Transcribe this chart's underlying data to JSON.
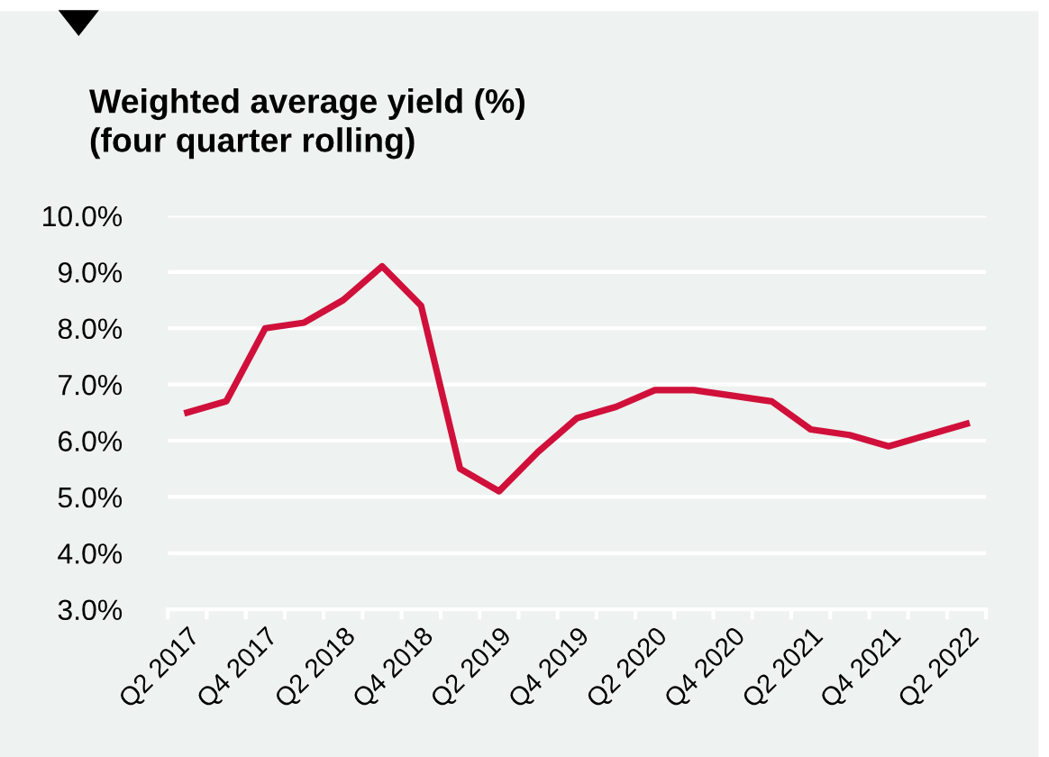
{
  "chart_data": {
    "type": "line",
    "title": "Weighted average yield (%)\n(four quarter rolling)",
    "categories": [
      "Q2 2017",
      null,
      "Q4 2017",
      null,
      "Q2 2018",
      null,
      "Q4 2018",
      null,
      "Q2 2019",
      null,
      "Q4 2019",
      null,
      "Q2 2020",
      null,
      "Q4 2020",
      null,
      "Q2 2021",
      null,
      "Q4 2021",
      null,
      "Q2 2022"
    ],
    "series": [
      {
        "color": "#d0103a",
        "values": [
          6.5,
          6.7,
          8.0,
          8.1,
          8.5,
          9.1,
          8.4,
          5.5,
          5.1,
          5.8,
          6.4,
          6.6,
          6.9,
          6.9,
          6.8,
          6.7,
          6.2,
          6.1,
          5.9,
          6.1,
          6.3
        ]
      }
    ],
    "ylim": [
      3.0,
      10.0
    ],
    "yticks": [
      {
        "value": 3,
        "label": "3.0%"
      },
      {
        "value": 4,
        "label": "4.0%"
      },
      {
        "value": 5,
        "label": "5.0%"
      },
      {
        "value": 6,
        "label": "6.0%"
      },
      {
        "value": 7,
        "label": "7.0%"
      },
      {
        "value": 8,
        "label": "8.0%"
      },
      {
        "value": 9,
        "label": "9.0%"
      },
      {
        "value": 10,
        "label": "10.0%"
      }
    ],
    "grid": "y",
    "legend": false,
    "marker": "none",
    "line_style": "solid"
  }
}
